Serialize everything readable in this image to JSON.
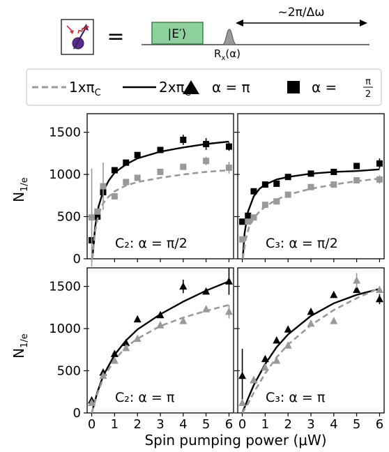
{
  "header": {
    "equals": "=",
    "pulse_label": "|E′⟩",
    "rotation_label": "R",
    "rotation_sub": "x",
    "rotation_arg": "(α)",
    "delay_label": "~2π/Δω"
  },
  "legend": {
    "entries": [
      {
        "key": "c1",
        "label": "1xπ",
        "sub": "C"
      },
      {
        "key": "c2",
        "label": "2xπ",
        "sub": "C"
      },
      {
        "key": "tri",
        "label": "α = π"
      },
      {
        "key": "sq",
        "label": "α = ",
        "frac_num": "π",
        "frac_den": "2"
      }
    ]
  },
  "axes": {
    "ylabel": "N",
    "ylabel_sub": "1/e",
    "xlabel": "Spin pumping power (μW)",
    "xticks": [
      "0",
      "1",
      "2",
      "3",
      "4",
      "5",
      "6"
    ],
    "yticks": [
      "0",
      "500",
      "1000",
      "1500"
    ]
  },
  "colors": {
    "black": "#000000",
    "gray": "#999999",
    "pulse_green": "#8fd19e",
    "pulse_edge": "#2e8b3e"
  },
  "chart_data": [
    {
      "type": "scatter",
      "panel": "top-left",
      "annotation": "C₂:  α = π/2",
      "marker": "square",
      "xlim": [
        -0.2,
        6.2
      ],
      "ylim": [
        0,
        1720
      ],
      "series": [
        {
          "name": "2xπC",
          "color": "#000000",
          "x": [
            0,
            0.25,
            0.5,
            1,
            1.5,
            2,
            3,
            4,
            5,
            6
          ],
          "y": [
            220,
            500,
            790,
            1050,
            1140,
            1230,
            1290,
            1410,
            1360,
            1330
          ],
          "err": [
            0,
            0,
            60,
            0,
            0,
            0,
            0,
            60,
            70,
            50
          ],
          "fit": [
            [
              0.03,
              0
            ],
            [
              0.15,
              380
            ],
            [
              0.3,
              620
            ],
            [
              0.5,
              800
            ],
            [
              0.75,
              930
            ],
            [
              1,
              1020
            ],
            [
              1.5,
              1120
            ],
            [
              2,
              1190
            ],
            [
              3,
              1270
            ],
            [
              4,
              1320
            ],
            [
              5,
              1360
            ],
            [
              6,
              1390
            ]
          ]
        },
        {
          "name": "1xπC",
          "color": "#999999",
          "x": [
            0,
            0.25,
            0.5,
            1,
            1.5,
            2,
            3,
            4,
            5,
            6
          ],
          "y": [
            490,
            560,
            860,
            740,
            910,
            960,
            1030,
            1090,
            1160,
            1080
          ],
          "err": [
            580,
            0,
            280,
            0,
            0,
            0,
            0,
            0,
            50,
            70
          ],
          "fit": [
            [
              0.03,
              0
            ],
            [
              0.15,
              330
            ],
            [
              0.3,
              530
            ],
            [
              0.5,
              660
            ],
            [
              0.75,
              740
            ],
            [
              1,
              800
            ],
            [
              1.5,
              870
            ],
            [
              2,
              910
            ],
            [
              3,
              960
            ],
            [
              4,
              1000
            ],
            [
              5,
              1030
            ],
            [
              6,
              1050
            ]
          ]
        }
      ]
    },
    {
      "type": "scatter",
      "panel": "top-right",
      "annotation": "C₃:  α = π/2",
      "marker": "square",
      "xlim": [
        -0.2,
        6.2
      ],
      "ylim": [
        0,
        1720
      ],
      "series": [
        {
          "name": "2xπC",
          "color": "#000000",
          "x": [
            0,
            0.25,
            0.5,
            1,
            1.5,
            2,
            3,
            4,
            5,
            6
          ],
          "y": [
            440,
            510,
            800,
            880,
            890,
            970,
            1010,
            1030,
            1100,
            1130
          ],
          "err": [
            0,
            0,
            0,
            0,
            0,
            0,
            0,
            0,
            0,
            60
          ],
          "fit": [
            [
              0.02,
              0
            ],
            [
              0.1,
              300
            ],
            [
              0.25,
              560
            ],
            [
              0.5,
              740
            ],
            [
              0.75,
              830
            ],
            [
              1,
              880
            ],
            [
              1.5,
              940
            ],
            [
              2,
              970
            ],
            [
              3,
              1010
            ],
            [
              4,
              1030
            ],
            [
              5,
              1040
            ],
            [
              6,
              1060
            ]
          ]
        },
        {
          "name": "1xπC",
          "color": "#999999",
          "x": [
            0,
            0.25,
            0.5,
            1,
            1.5,
            2,
            3,
            4,
            5,
            6
          ],
          "y": [
            230,
            440,
            490,
            640,
            680,
            760,
            850,
            880,
            930,
            940
          ],
          "err": [
            0,
            0,
            0,
            0,
            0,
            0,
            0,
            0,
            0,
            50
          ],
          "fit": [
            [
              0.02,
              0
            ],
            [
              0.15,
              230
            ],
            [
              0.3,
              380
            ],
            [
              0.5,
              480
            ],
            [
              0.75,
              560
            ],
            [
              1,
              620
            ],
            [
              1.5,
              700
            ],
            [
              2,
              760
            ],
            [
              3,
              830
            ],
            [
              4,
              880
            ],
            [
              5,
              920
            ],
            [
              6,
              950
            ]
          ]
        }
      ]
    },
    {
      "type": "scatter",
      "panel": "bottom-left",
      "annotation": "C₂:  α = π",
      "marker": "triangle",
      "xlim": [
        -0.2,
        6.2
      ],
      "ylim": [
        0,
        1720
      ],
      "series": [
        {
          "name": "2xπC",
          "color": "#000000",
          "x": [
            0,
            0.5,
            1,
            1.5,
            2,
            3,
            4,
            5,
            6
          ],
          "y": [
            150,
            480,
            700,
            830,
            1110,
            1160,
            1500,
            1440,
            1560
          ],
          "err": [
            0,
            0,
            0,
            0,
            0,
            0,
            80,
            0,
            160
          ],
          "fit": [
            [
              0,
              0
            ],
            [
              0.25,
              250
            ],
            [
              0.5,
              440
            ],
            [
              1,
              690
            ],
            [
              1.5,
              860
            ],
            [
              2,
              990
            ],
            [
              3,
              1170
            ],
            [
              4,
              1320
            ],
            [
              5,
              1450
            ],
            [
              6,
              1560
            ]
          ]
        },
        {
          "name": "1xπC",
          "color": "#999999",
          "x": [
            0,
            0.5,
            1,
            1.5,
            2,
            3,
            4,
            5,
            6
          ],
          "y": [
            120,
            440,
            620,
            770,
            880,
            1040,
            1090,
            1230,
            1200
          ],
          "err": [
            0,
            0,
            0,
            0,
            0,
            0,
            0,
            0,
            80
          ],
          "fit": [
            [
              0,
              0
            ],
            [
              0.25,
              230
            ],
            [
              0.5,
              410
            ],
            [
              1,
              630
            ],
            [
              1.5,
              780
            ],
            [
              2,
              880
            ],
            [
              3,
              1030
            ],
            [
              4,
              1130
            ],
            [
              5,
              1210
            ],
            [
              6,
              1280
            ]
          ]
        }
      ]
    },
    {
      "type": "scatter",
      "panel": "bottom-right",
      "annotation": "C₃:  α = π",
      "marker": "triangle",
      "xlim": [
        -0.2,
        6.2
      ],
      "ylim": [
        0,
        1720
      ],
      "series": [
        {
          "name": "2xπC",
          "color": "#000000",
          "x": [
            0,
            0.5,
            1,
            1.5,
            2,
            3,
            4,
            5,
            6
          ],
          "y": [
            440,
            390,
            640,
            860,
            990,
            1200,
            1400,
            1460,
            1350
          ],
          "err": [
            320,
            0,
            0,
            0,
            0,
            0,
            0,
            0,
            60
          ],
          "fit": [
            [
              0,
              0
            ],
            [
              0.25,
              170
            ],
            [
              0.5,
              330
            ],
            [
              1,
              580
            ],
            [
              1.5,
              780
            ],
            [
              2,
              930
            ],
            [
              3,
              1150
            ],
            [
              4,
              1300
            ],
            [
              5,
              1400
            ],
            [
              6,
              1470
            ]
          ]
        },
        {
          "name": "1xπC",
          "color": "#999999",
          "x": [
            0,
            0.5,
            1,
            1.5,
            2,
            3,
            4,
            5,
            6
          ],
          "y": [
            120,
            390,
            540,
            620,
            800,
            1060,
            1090,
            1570,
            1460
          ],
          "err": [
            0,
            0,
            0,
            0,
            0,
            0,
            0,
            90,
            0
          ],
          "fit": [
            [
              0,
              0
            ],
            [
              0.25,
              110
            ],
            [
              0.5,
              240
            ],
            [
              1,
              470
            ],
            [
              1.5,
              660
            ],
            [
              2,
              810
            ],
            [
              3,
              1040
            ],
            [
              4,
              1220
            ],
            [
              5,
              1360
            ],
            [
              6,
              1480
            ]
          ]
        }
      ]
    }
  ]
}
